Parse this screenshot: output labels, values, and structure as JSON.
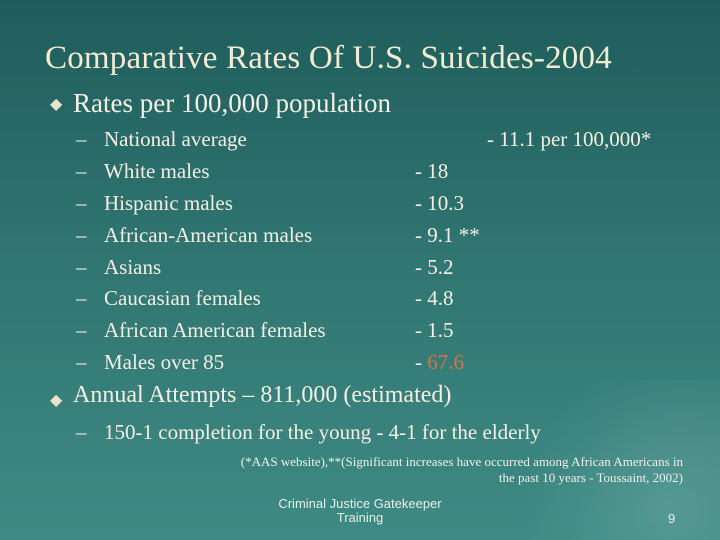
{
  "slide": {
    "title": "Comparative Rates Of U.S. Suicides-2004",
    "bullet1": "Rates per 100,000 population",
    "items": [
      {
        "label": "National average",
        "value": "- 11.1 per 100,000*"
      },
      {
        "label": "White males",
        "value": "- 18"
      },
      {
        "label": "Hispanic males",
        "value": "- 10.3"
      },
      {
        "label": "African-American males",
        "value": "- 9.1 **"
      },
      {
        "label": "Asians",
        "value": "- 5.2"
      },
      {
        "label": "Caucasian females",
        "value": "- 4.8"
      },
      {
        "label": "African American females",
        "value": "- 1.5"
      },
      {
        "label": "Males over 85",
        "value_prefix": "- ",
        "value_highlight": "67.6"
      }
    ],
    "bullet2": "Annual Attempts – 811,000 (estimated)",
    "sub2": "150-1 completion for the young - 4-1 for the elderly",
    "note_line1": "(*AAS website),**(Significant increases have occurred among African Americans in",
    "note_line2": "the past 10 years - Toussaint, 2002)",
    "footer_line1": "Criminal Justice Gatekeeper",
    "footer_line2": "Training",
    "page_number": "9",
    "dash": "–",
    "diamond": "◆",
    "colors": {
      "accent": "#d9743a",
      "background": "#2f7470",
      "title": "#f3ecd2"
    }
  }
}
